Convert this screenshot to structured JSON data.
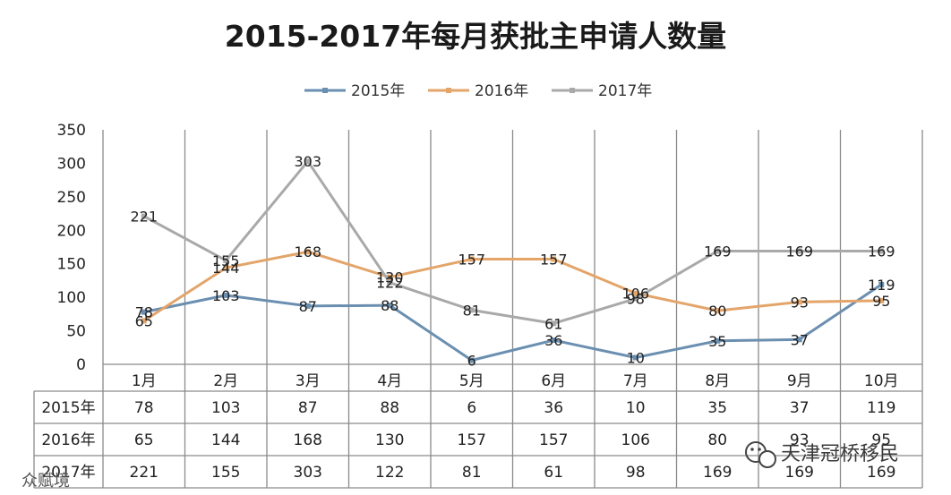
{
  "chart_data": {
    "type": "line",
    "title": "2015-2017年每月获批主申请人数量",
    "categories": [
      "1月",
      "2月",
      "3月",
      "4月",
      "5月",
      "6月",
      "7月",
      "8月",
      "9月",
      "10月"
    ],
    "ylim": [
      0,
      350
    ],
    "yticks": [
      "350",
      "300",
      "250",
      "200",
      "150",
      "100",
      "50",
      "0"
    ],
    "grid": "vertical",
    "legend": "top",
    "series": [
      {
        "name": "2015年",
        "color": "#6b8fb0",
        "values": [
          78,
          103,
          87,
          88,
          6,
          36,
          10,
          35,
          37,
          119
        ]
      },
      {
        "name": "2016年",
        "color": "#e3a56a",
        "values": [
          65,
          144,
          168,
          130,
          157,
          157,
          106,
          80,
          93,
          95
        ]
      },
      {
        "name": "2017年",
        "color": "#a9a9a9",
        "values": [
          221,
          155,
          303,
          122,
          81,
          61,
          98,
          169,
          169,
          169
        ]
      }
    ]
  },
  "watermark_right": "天津冠桥移民",
  "watermark_left": "众赋境",
  "wechat_icon": "wechat-icon"
}
